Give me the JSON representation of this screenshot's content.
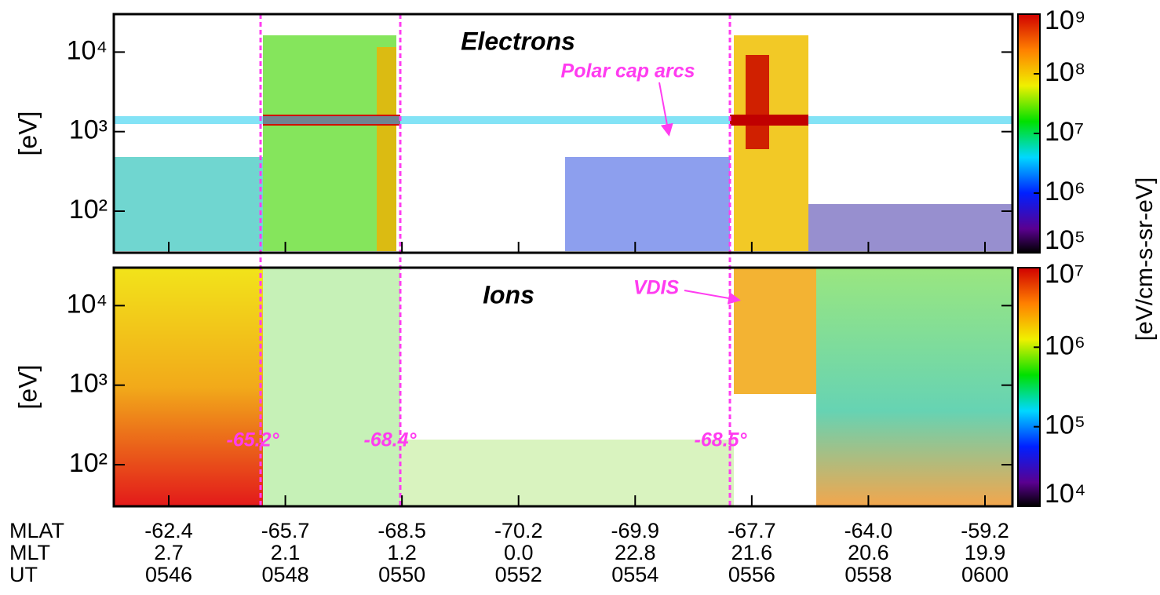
{
  "chart_data": [
    {
      "type": "spectrogram",
      "title": "Electrons",
      "ylabel": "[eV]",
      "log_y": true,
      "ylim": [
        30,
        30000
      ],
      "yticks": [
        {
          "value": 100,
          "label": "10²"
        },
        {
          "value": 1000,
          "label": "10³"
        },
        {
          "value": 10000,
          "label": "10⁴"
        }
      ],
      "colorbar": {
        "log": true,
        "lim": [
          100000,
          1000000000
        ],
        "ticks": [
          {
            "value": 100000,
            "label": "10⁵"
          },
          {
            "value": 1000000,
            "label": "10⁶"
          },
          {
            "value": 10000000,
            "label": "10⁷"
          },
          {
            "value": 100000000,
            "label": "10⁸"
          },
          {
            "value": 1000000000,
            "label": "10⁹"
          }
        ]
      },
      "annotation": "Polar cap arcs"
    },
    {
      "type": "spectrogram",
      "title": "Ions",
      "ylabel": "[eV]",
      "log_y": true,
      "ylim": [
        30,
        30000
      ],
      "yticks": [
        {
          "value": 100,
          "label": "10²"
        },
        {
          "value": 1000,
          "label": "10³"
        },
        {
          "value": 10000,
          "label": "10⁴"
        }
      ],
      "colorbar": {
        "log": true,
        "lim": [
          10000,
          10000000
        ],
        "ticks": [
          {
            "value": 10000,
            "label": "10⁴"
          },
          {
            "value": 100000,
            "label": "10⁵"
          },
          {
            "value": 1000000,
            "label": "10⁶"
          },
          {
            "value": 10000000,
            "label": "10⁷"
          }
        ]
      },
      "annotation": "VDIS"
    }
  ],
  "colorbar_label": "[eV/cm-s-sr-eV]",
  "boundaries": [
    "-65.2°",
    "-68.4°",
    "-68.5°"
  ],
  "x_axis": [
    {
      "name": "MLAT",
      "labels": [
        "-62.4",
        "-65.7",
        "-68.5",
        "-70.2",
        "-69.9",
        "-67.7",
        "-64.0",
        "-59.2"
      ]
    },
    {
      "name": "MLT",
      "labels": [
        "2.7",
        "2.1",
        "1.2",
        "0.0",
        "22.8",
        "21.6",
        "20.6",
        "19.9"
      ]
    },
    {
      "name": "UT",
      "labels": [
        "0546",
        "0548",
        "0550",
        "0552",
        "0554",
        "0556",
        "0558",
        "0600"
      ]
    }
  ]
}
